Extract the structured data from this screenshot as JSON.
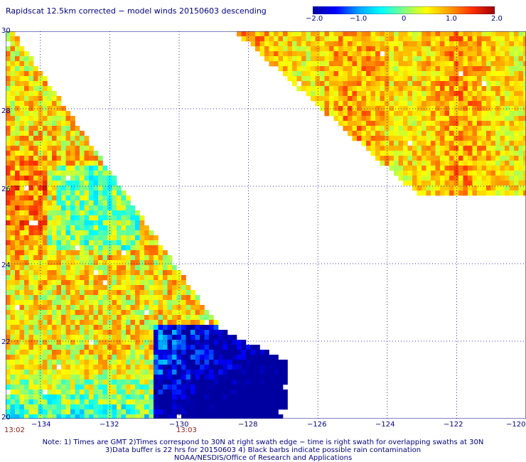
{
  "title": "Rapidscat 12.5km corrected − model winds 20150603 descending",
  "colorbar": {
    "labels": [
      "−2.0",
      "−1.0",
      "0",
      "1.0",
      "2.0"
    ],
    "colors": [
      "#0000a0",
      "#0000ff",
      "#00a0ff",
      "#00ffff",
      "#80ff80",
      "#ffff00",
      "#ffa000",
      "#ff3000",
      "#a00000"
    ]
  },
  "map": {
    "lat_labels": [
      "30",
      "28",
      "26",
      "24",
      "22",
      "20"
    ],
    "lon_labels": [
      "−134",
      "−132",
      "−130",
      "−128",
      "−126",
      "−124",
      "−122",
      "−120"
    ],
    "times": [
      "13:02",
      "13:03"
    ]
  },
  "chart_data": {
    "type": "heatmap",
    "title": "Rapidscat 12.5km corrected − model winds 20150603 descending",
    "x_range": [
      -135,
      -120
    ],
    "y_range": [
      20,
      30
    ],
    "value_range": [
      -2.0,
      2.0
    ],
    "grid": true
  },
  "footnotes": [
    "Note: 1) Times are GMT 2)Times correspond to 30N at right swath edge − time is right swath for overlapping swaths at 30N",
    "3)Data buffer is 22 hrs for 20150603 4) Black barbs indicate possible rain contamination",
    "NOAA/NESDIS/Office of Research and Applications"
  ]
}
